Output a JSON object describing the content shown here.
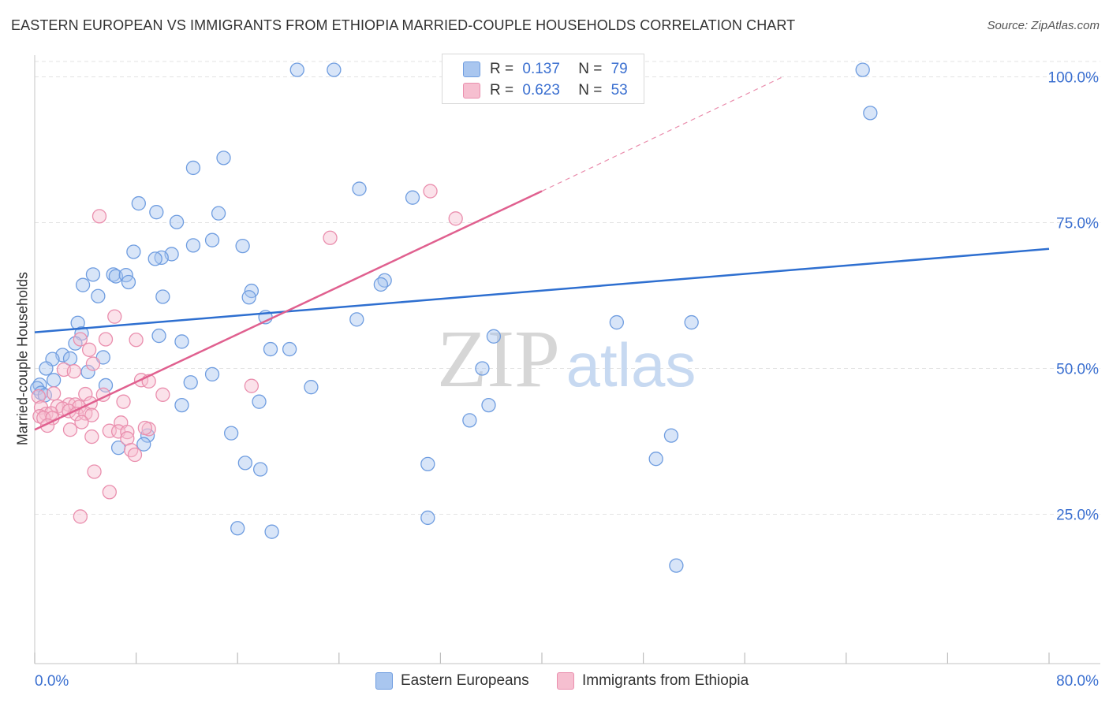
{
  "title": "EASTERN EUROPEAN VS IMMIGRANTS FROM ETHIOPIA MARRIED-COUPLE HOUSEHOLDS CORRELATION CHART",
  "source": "Source: ZipAtlas.com",
  "watermark": {
    "zip": "ZIP",
    "atlas": "atlas"
  },
  "colors": {
    "blue_fill": "#a9c6ef",
    "blue_stroke": "#6f9de0",
    "blue_line": "#2e6fd0",
    "pink_fill": "#f6bfd0",
    "pink_stroke": "#ea8fae",
    "pink_line": "#e0608f",
    "axis_label": "#3a6fd0",
    "grid": "#e3e3e3"
  },
  "legend_top": {
    "rows": [
      {
        "r_label": "R =",
        "r_value": "0.137",
        "n_label": "N =",
        "n_value": "79"
      },
      {
        "r_label": "R =",
        "r_value": "0.623",
        "n_label": "N =",
        "n_value": "53"
      }
    ]
  },
  "chart_data": {
    "type": "scatter",
    "title": "EASTERN EUROPEAN VS IMMIGRANTS FROM ETHIOPIA MARRIED-COUPLE HOUSEHOLDS CORRELATION CHART",
    "xlabel": "",
    "ylabel": "Married-couple Households",
    "xlim": [
      0,
      80
    ],
    "ylim": [
      0,
      102
    ],
    "x_tick_labels": [
      "0.0%",
      "80.0%"
    ],
    "y_ticks": [
      25,
      50,
      75,
      100
    ],
    "y_tick_labels": [
      "25.0%",
      "50.0%",
      "75.0%",
      "100.0%"
    ],
    "grid": true,
    "legend_position": "bottom",
    "series": [
      {
        "name": "Eastern Europeans",
        "R": 0.137,
        "N": 79,
        "trend": {
          "x": [
            0,
            80
          ],
          "y": [
            56.2,
            70.5
          ],
          "dashed_extension": null
        },
        "points": [
          [
            20.7,
            101.2
          ],
          [
            23.6,
            101.2
          ],
          [
            65.3,
            101.2
          ],
          [
            65.9,
            93.8
          ],
          [
            14.9,
            86.1
          ],
          [
            12.5,
            84.4
          ],
          [
            25.6,
            80.8
          ],
          [
            29.8,
            79.3
          ],
          [
            8.2,
            78.3
          ],
          [
            9.6,
            76.8
          ],
          [
            14.5,
            76.6
          ],
          [
            11.2,
            75.1
          ],
          [
            14.0,
            72.0
          ],
          [
            12.5,
            71.1
          ],
          [
            16.4,
            71.0
          ],
          [
            7.8,
            70.0
          ],
          [
            10.8,
            69.6
          ],
          [
            10.0,
            69.0
          ],
          [
            9.5,
            68.8
          ],
          [
            4.6,
            66.1
          ],
          [
            6.2,
            66.1
          ],
          [
            6.4,
            65.8
          ],
          [
            7.2,
            66.0
          ],
          [
            7.4,
            64.8
          ],
          [
            3.8,
            64.3
          ],
          [
            27.6,
            65.1
          ],
          [
            27.3,
            64.4
          ],
          [
            17.1,
            63.3
          ],
          [
            16.9,
            62.2
          ],
          [
            5.0,
            62.4
          ],
          [
            10.1,
            62.3
          ],
          [
            18.2,
            58.8
          ],
          [
            25.4,
            58.4
          ],
          [
            51.8,
            57.9
          ],
          [
            3.4,
            57.8
          ],
          [
            3.7,
            56.0
          ],
          [
            9.8,
            55.6
          ],
          [
            36.2,
            55.5
          ],
          [
            11.6,
            54.6
          ],
          [
            3.2,
            54.3
          ],
          [
            18.6,
            53.3
          ],
          [
            20.1,
            53.3
          ],
          [
            2.2,
            52.3
          ],
          [
            1.4,
            51.6
          ],
          [
            2.8,
            51.7
          ],
          [
            5.4,
            51.9
          ],
          [
            0.9,
            50.0
          ],
          [
            4.2,
            49.4
          ],
          [
            14.0,
            49.0
          ],
          [
            35.3,
            50.0
          ],
          [
            1.5,
            48.0
          ],
          [
            12.3,
            47.6
          ],
          [
            0.4,
            47.2
          ],
          [
            5.6,
            47.1
          ],
          [
            21.8,
            46.8
          ],
          [
            0.2,
            46.6
          ],
          [
            0.5,
            45.8
          ],
          [
            0.8,
            45.4
          ],
          [
            11.6,
            43.7
          ],
          [
            17.7,
            44.3
          ],
          [
            35.8,
            43.7
          ],
          [
            34.3,
            41.1
          ],
          [
            8.9,
            38.5
          ],
          [
            15.5,
            38.9
          ],
          [
            50.2,
            38.5
          ],
          [
            8.6,
            37.0
          ],
          [
            6.6,
            36.4
          ],
          [
            16.6,
            33.8
          ],
          [
            31.0,
            33.6
          ],
          [
            49.0,
            34.5
          ],
          [
            17.8,
            32.7
          ],
          [
            31.0,
            24.4
          ],
          [
            16.0,
            22.6
          ],
          [
            18.7,
            22.0
          ],
          [
            50.6,
            16.2
          ],
          [
            45.9,
            57.9
          ]
        ]
      },
      {
        "name": "Immigrants from Ethiopia",
        "R": 0.623,
        "N": 53,
        "trend": {
          "x": [
            0,
            40
          ],
          "y": [
            39.5,
            80.4
          ],
          "dashed_extension": {
            "x": [
              40,
              59
            ],
            "y": [
              80.4,
              100
            ]
          }
        },
        "points": [
          [
            31.2,
            80.4
          ],
          [
            5.1,
            76.1
          ],
          [
            33.2,
            75.7
          ],
          [
            23.3,
            72.4
          ],
          [
            6.3,
            58.9
          ],
          [
            3.6,
            55.0
          ],
          [
            5.6,
            55.0
          ],
          [
            8.0,
            54.9
          ],
          [
            4.3,
            53.2
          ],
          [
            4.6,
            50.8
          ],
          [
            2.3,
            49.8
          ],
          [
            3.1,
            49.5
          ],
          [
            8.4,
            48.0
          ],
          [
            17.1,
            47.0
          ],
          [
            9.0,
            47.8
          ],
          [
            5.4,
            45.5
          ],
          [
            10.1,
            45.5
          ],
          [
            1.5,
            45.7
          ],
          [
            4.0,
            45.6
          ],
          [
            0.3,
            45.2
          ],
          [
            2.7,
            43.8
          ],
          [
            3.2,
            43.8
          ],
          [
            4.4,
            44.0
          ],
          [
            7.0,
            44.3
          ],
          [
            0.5,
            43.3
          ],
          [
            1.8,
            43.5
          ],
          [
            2.2,
            43.1
          ],
          [
            3.5,
            43.4
          ],
          [
            0.9,
            42.2
          ],
          [
            1.3,
            42.3
          ],
          [
            2.7,
            42.7
          ],
          [
            3.3,
            42.2
          ],
          [
            4.0,
            42.3
          ],
          [
            4.5,
            42.0
          ],
          [
            0.4,
            41.8
          ],
          [
            0.7,
            41.5
          ],
          [
            1.4,
            41.5
          ],
          [
            3.7,
            40.8
          ],
          [
            6.8,
            40.7
          ],
          [
            1.0,
            40.2
          ],
          [
            2.8,
            39.5
          ],
          [
            5.9,
            39.3
          ],
          [
            6.6,
            39.2
          ],
          [
            7.3,
            39.1
          ],
          [
            9.0,
            39.6
          ],
          [
            8.7,
            39.8
          ],
          [
            4.5,
            38.3
          ],
          [
            7.3,
            38.0
          ],
          [
            7.6,
            36.0
          ],
          [
            7.9,
            35.2
          ],
          [
            4.7,
            32.3
          ],
          [
            5.9,
            28.8
          ],
          [
            3.6,
            24.6
          ]
        ]
      }
    ]
  }
}
